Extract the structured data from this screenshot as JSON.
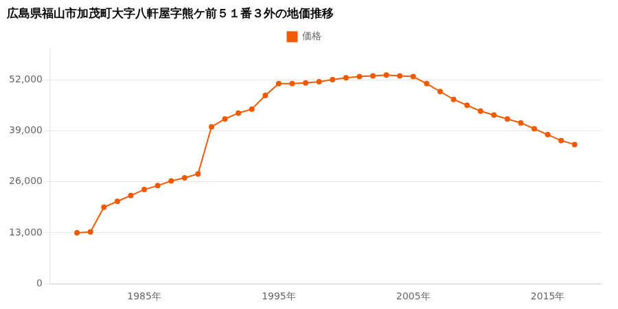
{
  "chart_data": {
    "type": "line",
    "title": "広島県福山市加茂町大字八軒屋字熊ケ前５１番３外の地価推移",
    "x": [
      1980,
      1981,
      1982,
      1983,
      1984,
      1985,
      1986,
      1987,
      1988,
      1989,
      1990,
      1991,
      1992,
      1993,
      1994,
      1995,
      1996,
      1997,
      1998,
      1999,
      2000,
      2001,
      2002,
      2003,
      2004,
      2005,
      2006,
      2007,
      2008,
      2009,
      2010,
      2011,
      2012,
      2013,
      2014,
      2015,
      2016,
      2017
    ],
    "series": [
      {
        "name": "価格",
        "color": "#F05A00",
        "marker": "circle",
        "line_style": "solid",
        "values": [
          13000,
          13200,
          19500,
          21000,
          22500,
          24000,
          25000,
          26200,
          27000,
          28000,
          40000,
          42000,
          43500,
          44500,
          48000,
          51000,
          51000,
          51200,
          51500,
          52000,
          52500,
          52800,
          53000,
          53200,
          53000,
          52800,
          51000,
          49000,
          47000,
          45500,
          44000,
          43000,
          42000,
          41000,
          39500,
          38000,
          36500,
          35500
        ]
      }
    ],
    "xlim": [
      1978,
      2019
    ],
    "xticks": [
      {
        "value": 1985,
        "label": "1985年"
      },
      {
        "value": 1995,
        "label": "1995年"
      },
      {
        "value": 2005,
        "label": "2005年"
      },
      {
        "value": 2015,
        "label": "2015年"
      }
    ],
    "ylim": [
      0,
      60000
    ],
    "yticks": [
      0,
      {
        "value": 13000,
        "label": "13,000"
      },
      {
        "value": 26000,
        "label": "26,000"
      },
      {
        "value": 39000,
        "label": "39,000"
      },
      {
        "value": 52000,
        "label": "52,000"
      }
    ],
    "grid": "y",
    "legend": "top"
  }
}
